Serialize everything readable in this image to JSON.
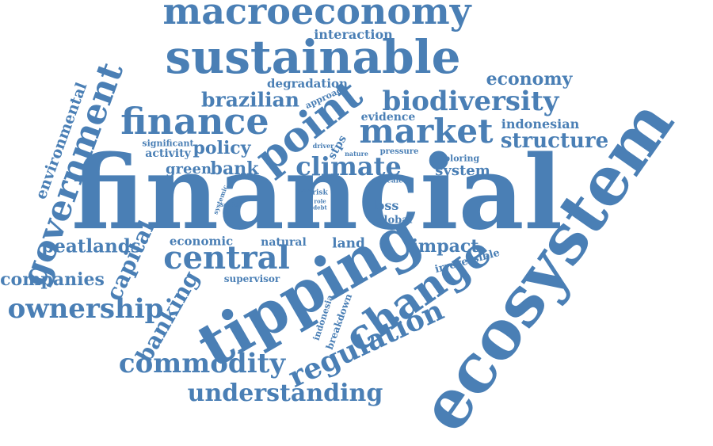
{
  "colors": {
    "word": "#4a7fb5",
    "background": "#ffffff"
  },
  "words": [
    {
      "text": "macroeconomy"
    },
    {
      "text": "interaction"
    },
    {
      "text": "sustainable"
    },
    {
      "text": "economy"
    },
    {
      "text": "degradation"
    },
    {
      "text": "approach"
    },
    {
      "text": "brazilian"
    },
    {
      "text": "biodiversity"
    },
    {
      "text": "finance"
    },
    {
      "text": "point"
    },
    {
      "text": "market"
    },
    {
      "text": "evidence"
    },
    {
      "text": "indonesian"
    },
    {
      "text": "structure"
    },
    {
      "text": "significant"
    },
    {
      "text": "activity"
    },
    {
      "text": "policy"
    },
    {
      "text": "climate"
    },
    {
      "text": "exploring"
    },
    {
      "text": "system"
    },
    {
      "text": "driver"
    },
    {
      "text": "stps"
    },
    {
      "text": "nature"
    },
    {
      "text": "pressure"
    },
    {
      "text": "green"
    },
    {
      "text": "bank"
    },
    {
      "text": "scale"
    },
    {
      "text": "financial"
    },
    {
      "text": "environmental"
    },
    {
      "text": "government"
    },
    {
      "text": "ecosystem"
    },
    {
      "text": "case"
    },
    {
      "text": "risk"
    },
    {
      "text": "role"
    },
    {
      "text": "debt"
    },
    {
      "text": "systemic"
    },
    {
      "text": "sector"
    },
    {
      "text": "loss"
    },
    {
      "text": "global"
    },
    {
      "text": "peatlands"
    },
    {
      "text": "capital"
    },
    {
      "text": "economic"
    },
    {
      "text": "natural"
    },
    {
      "text": "land"
    },
    {
      "text": "impact"
    },
    {
      "text": "irreversible"
    },
    {
      "text": "central"
    },
    {
      "text": "companies"
    },
    {
      "text": "supervisor"
    },
    {
      "text": "tipping"
    },
    {
      "text": "banking"
    },
    {
      "text": "change"
    },
    {
      "text": "ownership"
    },
    {
      "text": "indonesia"
    },
    {
      "text": "breakdown"
    },
    {
      "text": "regulation"
    },
    {
      "text": "commodity"
    },
    {
      "text": "understanding"
    }
  ]
}
